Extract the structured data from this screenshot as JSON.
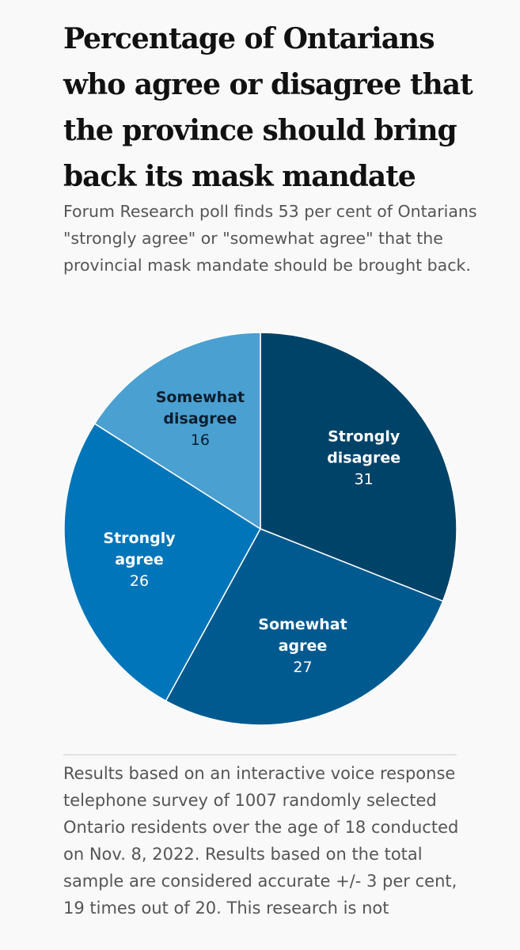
{
  "title": "Percentage of Ontarians who agree or disagree that the province should bring back its mask mandate",
  "subtitle": "Forum Research poll finds 53 per cent of Ontarians \"strongly agree\" or \"somewhat agree\" that the provincial mask mandate should be brought back.",
  "notes": "Results based on an interactive voice response telephone survey of 1007 randomly selected Ontario residents over the age of 18 conducted on Nov. 8, 2022. Results based on the total sample are considered accurate +/- 3 per cent, 19 times out of 20. This research is not",
  "chart_data": {
    "type": "pie",
    "title": "Percentage of Ontarians who agree or disagree that the province should bring back its mask mandate",
    "slices": [
      {
        "name": "Strongly disagree",
        "lines": [
          "Strongly",
          "disagree"
        ],
        "value": 31,
        "color": "#004369",
        "label_color": "#ffffff"
      },
      {
        "name": "Somewhat agree",
        "lines": [
          "Somewhat",
          "agree"
        ],
        "value": 27,
        "color": "#005a90",
        "label_color": "#ffffff"
      },
      {
        "name": "Strongly agree",
        "lines": [
          "Strongly",
          "agree"
        ],
        "value": 26,
        "color": "#0075b9",
        "label_color": "#ffffff"
      },
      {
        "name": "Somewhat disagree",
        "lines": [
          "Somewhat",
          "disagree"
        ],
        "value": 16,
        "color": "#4aa0d1",
        "label_color": "#0b1e2e"
      }
    ],
    "start": "12 o'clock",
    "direction": "clockwise"
  }
}
